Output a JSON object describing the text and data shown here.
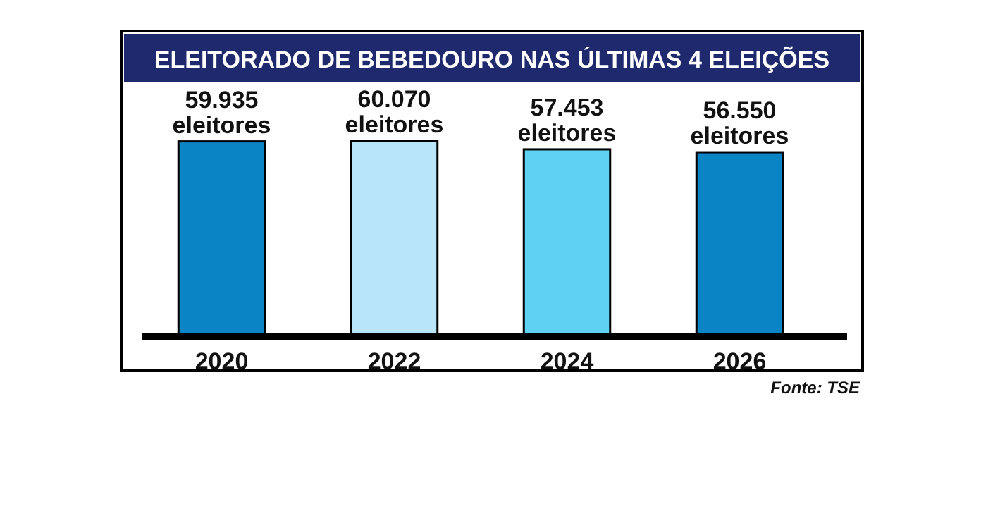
{
  "chart_data": {
    "type": "bar",
    "title": "ELEITORADO DE BEBEDOURO NAS ÚLTIMAS 4 ELEIÇÕES",
    "categories": [
      "2020",
      "2022",
      "2024",
      "2026"
    ],
    "values": [
      59935,
      60070,
      57453,
      56550
    ],
    "colors": [
      "#0a84c4",
      "#b8e6f8",
      "#5fd1f3",
      "#0a84c4"
    ],
    "value_labels": [
      "59.935 eleitores",
      "60.070 eleitores",
      "57.453 eleitores",
      "56.550 eleitores"
    ],
    "tick_labels": "x",
    "annotations": [
      "Fonte: TSE"
    ]
  }
}
